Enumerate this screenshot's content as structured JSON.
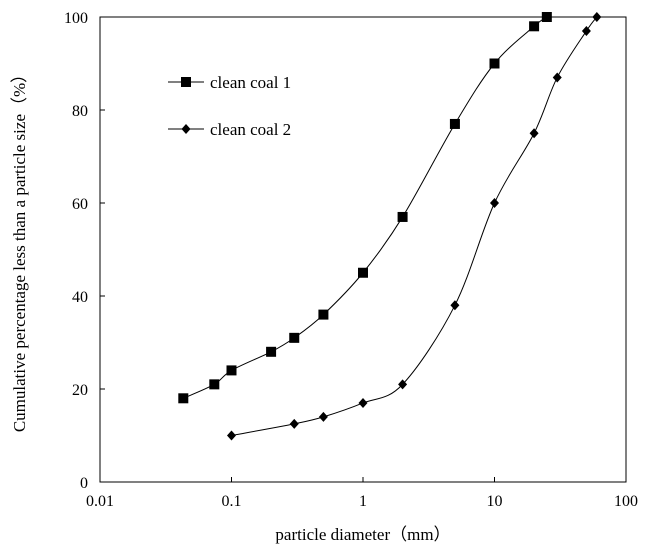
{
  "chart_data": {
    "type": "line",
    "xscale": "log",
    "xlim": [
      0.01,
      100
    ],
    "ylim": [
      0,
      100
    ],
    "xticks": [
      0.01,
      0.1,
      1,
      10,
      100
    ],
    "xtick_labels": [
      "0.01",
      "0.1",
      "1",
      "10",
      "100"
    ],
    "yticks": [
      0,
      20,
      40,
      60,
      80,
      100
    ],
    "ytick_labels": [
      "0",
      "20",
      "40",
      "60",
      "80",
      "100"
    ],
    "xlabel": "particle diameter（mm）",
    "ylabel": "Cumulative percentage less than a particle size（%）",
    "title": "",
    "grid": false,
    "legend_position": "top-left",
    "series": [
      {
        "name": "clean coal 1",
        "marker": "square",
        "color": "#000000",
        "x": [
          0.043,
          0.074,
          0.1,
          0.2,
          0.3,
          0.5,
          1,
          2,
          5,
          10,
          20,
          25
        ],
        "y": [
          18,
          21,
          24,
          28,
          31,
          36,
          45,
          57,
          77,
          90,
          98,
          100
        ]
      },
      {
        "name": "clean coal 2",
        "marker": "diamond",
        "color": "#000000",
        "x": [
          0.1,
          0.3,
          0.5,
          1,
          2,
          5,
          10,
          20,
          30,
          50,
          60
        ],
        "y": [
          10,
          12.5,
          14,
          17,
          21,
          38,
          60,
          75,
          87,
          97,
          100
        ]
      }
    ]
  }
}
